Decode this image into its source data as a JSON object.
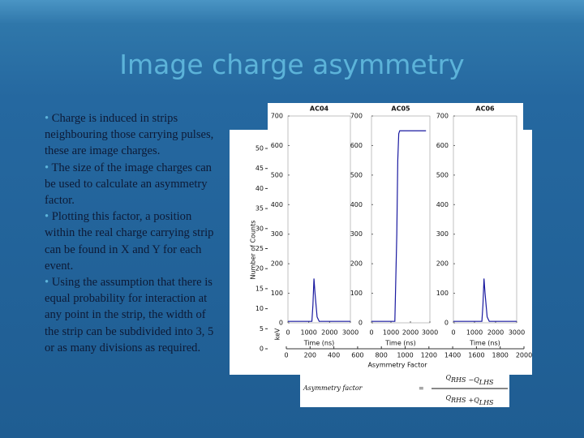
{
  "title": "Image charge asymmetry",
  "bullets": [
    "Charge is induced in strips neighbouring those carrying pulses, these are image charges.",
    "The size of the image charges can be used to calculate an asymmetry factor.",
    "Plotting this factor, a position within the real charge carrying strip can be found in X and Y for each event.",
    "Using the assumption that there is equal  probability for interaction at any point in the strip, the width of the strip can be subdivided into 3,  5 or as many divisions as required."
  ],
  "figure": {
    "histogram": {
      "xlabel": "Asymmetry Factor",
      "ylabel": "Number of Counts",
      "xlim": [
        0,
        2000
      ],
      "ylim": [
        0,
        50
      ],
      "xticks": [
        0,
        200,
        400,
        600,
        800,
        1000,
        1200,
        1400,
        1600,
        1800,
        2000
      ],
      "yticks": [
        0,
        5,
        10,
        15,
        20,
        25,
        30,
        35,
        40,
        45,
        50
      ]
    },
    "waveform_ylabel": "keV",
    "panels": [
      {
        "title": "AC04",
        "xlabel": "Time (ns)",
        "xlim": [
          0,
          3000
        ],
        "ylim": [
          0,
          700
        ],
        "xticks": [
          0,
          1000,
          2000,
          3000
        ],
        "yticks": [
          0,
          100,
          200,
          300,
          400,
          500,
          600,
          700
        ],
        "color": "#1a1aa0",
        "x": [
          0,
          1150,
          1200,
          1250,
          1300,
          1400,
          1500,
          3000
        ],
        "values": [
          5,
          5,
          60,
          150,
          100,
          20,
          5,
          5
        ]
      },
      {
        "title": "AC05",
        "xlabel": "Time (ns)",
        "xlim": [
          0,
          3000
        ],
        "ylim": [
          0,
          700
        ],
        "xticks": [
          0,
          1000,
          2000,
          3000
        ],
        "yticks": [
          0,
          100,
          200,
          300,
          400,
          500,
          600,
          700
        ],
        "color": "#1a1aa0",
        "x": [
          0,
          1200,
          1300,
          1350,
          1400,
          1450,
          1500,
          2800
        ],
        "values": [
          5,
          5,
          300,
          550,
          640,
          650,
          650,
          650
        ]
      },
      {
        "title": "AC06",
        "xlabel": "Time (ns)",
        "xlim": [
          0,
          3000
        ],
        "ylim": [
          0,
          700
        ],
        "xticks": [
          0,
          1000,
          2000,
          3000
        ],
        "yticks": [
          0,
          100,
          200,
          300,
          400,
          500,
          600,
          700
        ],
        "color": "#1a1aa0",
        "x": [
          0,
          1350,
          1400,
          1450,
          1500,
          1600,
          1700,
          3000
        ],
        "values": [
          5,
          5,
          60,
          150,
          100,
          20,
          5,
          5
        ]
      }
    ]
  },
  "formula": {
    "lhs": "Asymmetry factor",
    "equals": "=",
    "numerator": [
      {
        "base": "Q",
        "sub": "RHS"
      },
      {
        "op": "−"
      },
      {
        "base": "Q",
        "sub": "LHS"
      }
    ],
    "denominator": [
      {
        "base": "Q",
        "sub": "RHS"
      },
      {
        "op": "+"
      },
      {
        "base": "Q",
        "sub": "LHS"
      }
    ]
  }
}
